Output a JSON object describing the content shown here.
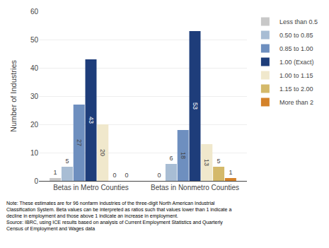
{
  "chart_data": {
    "type": "bar",
    "categories": [
      "Betas in Metro Counties",
      "Betas in Nonmetro Counties"
    ],
    "series": [
      {
        "name": "Less than 0.5",
        "color": "#c8c8c8",
        "values": [
          1,
          0
        ]
      },
      {
        "name": "0.50 to 0.85",
        "color": "#a8bdd4",
        "values": [
          5,
          6
        ]
      },
      {
        "name": "0.85 to 1.00",
        "color": "#6e8fbf",
        "values": [
          27,
          18
        ]
      },
      {
        "name": "1.00 (Exact)",
        "color": "#1e3d7a",
        "values": [
          43,
          53
        ]
      },
      {
        "name": "1.00 to 1.15",
        "color": "#f0e8cc",
        "values": [
          20,
          13
        ]
      },
      {
        "name": "1.15 to 2.00",
        "color": "#d4b96a",
        "values": [
          0,
          5
        ]
      },
      {
        "name": "More than 2",
        "color": "#d4822a",
        "values": [
          0,
          1
        ]
      }
    ],
    "ylabel": "Number of Industries",
    "ylim": [
      0,
      60
    ],
    "yticks": [
      0,
      10,
      20,
      30,
      40,
      50,
      60
    ],
    "grid": true,
    "legend": "right",
    "data_labels": true,
    "annotations": [
      "Note: These estimates are for 96 nonfarm industries of the three-digit North American Industrial\nClassification System. Beta values can be interpreted as ratios such that values lower than 1 indicate a\ndecline in employment and those above 1 indicate an increase in employment.\nSource: IBRC, using ICE results based on analysis of Current Employment Statistics and Quarterly\nCensus of Employment and Wages data"
    ]
  }
}
